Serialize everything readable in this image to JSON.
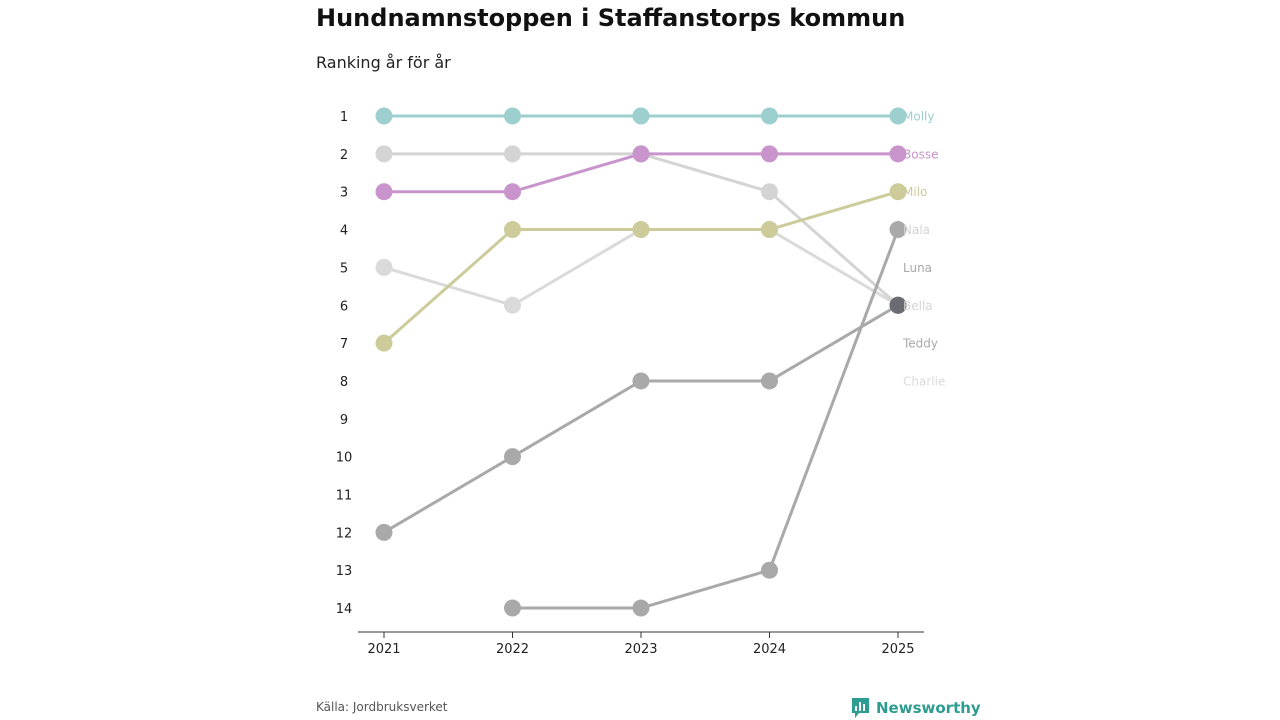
{
  "title": "Hundnamnstoppen i Staffanstorps kommun",
  "subtitle": "Ranking år för år",
  "source": "Källa: Jordbruksverket",
  "brand": {
    "name": "Newsworthy",
    "color": "#2d9c91",
    "icon": "newsworthy-logo-icon"
  },
  "colors": {
    "axis": "#333333",
    "tick_text": "#222222"
  },
  "chart_data": {
    "type": "line",
    "chart_kind": "bump",
    "title": "Hundnamnstoppen i Staffanstorps kommun",
    "subtitle": "Ranking år för år",
    "xlabel": "",
    "ylabel": "",
    "x": [
      "2021",
      "2022",
      "2023",
      "2024",
      "2025"
    ],
    "y_ticks": [
      1,
      2,
      3,
      4,
      5,
      6,
      7,
      8,
      9,
      10,
      11,
      12,
      13,
      14
    ],
    "ylim": [
      1,
      14
    ],
    "y_inverted": true,
    "series": [
      {
        "name": "Charlie",
        "color": "#dadada",
        "values": [
          5,
          6,
          4,
          4,
          6
        ]
      },
      {
        "name": "Nala",
        "color": "#d4d4d4",
        "values": [
          2,
          2,
          2,
          3,
          6
        ]
      },
      {
        "name": "Milo",
        "color": "#cdcb9a",
        "values": [
          7,
          4,
          4,
          4,
          3
        ]
      },
      {
        "name": "Teddy",
        "color": "#a9a9a9",
        "values": [
          null,
          14,
          14,
          13,
          4
        ]
      },
      {
        "name": "Luna",
        "color": "#a9a9a9",
        "values": [
          12,
          10,
          8,
          8,
          6
        ]
      },
      {
        "name": "Bella",
        "color": "#6b6b73",
        "values": [
          null,
          null,
          null,
          null,
          6
        ]
      },
      {
        "name": "Bosse",
        "color": "#c994cc",
        "values": [
          3,
          3,
          2,
          2,
          2
        ]
      },
      {
        "name": "Molly",
        "color": "#9dcfcf",
        "values": [
          1,
          1,
          1,
          1,
          1
        ]
      }
    ],
    "end_labels": [
      {
        "name": "Molly",
        "color": "#9dcfcf"
      },
      {
        "name": "Bosse",
        "color": "#c994cc"
      },
      {
        "name": "Milo",
        "color": "#cdcb9a"
      },
      {
        "name": "Nala",
        "color": "#d4d4d4"
      },
      {
        "name": "Luna",
        "color": "#a9a9a9"
      },
      {
        "name": "Bella",
        "color": "#d4d4d4"
      },
      {
        "name": "Teddy",
        "color": "#a9a9a9"
      },
      {
        "name": "Charlie",
        "color": "#dadada"
      }
    ]
  }
}
